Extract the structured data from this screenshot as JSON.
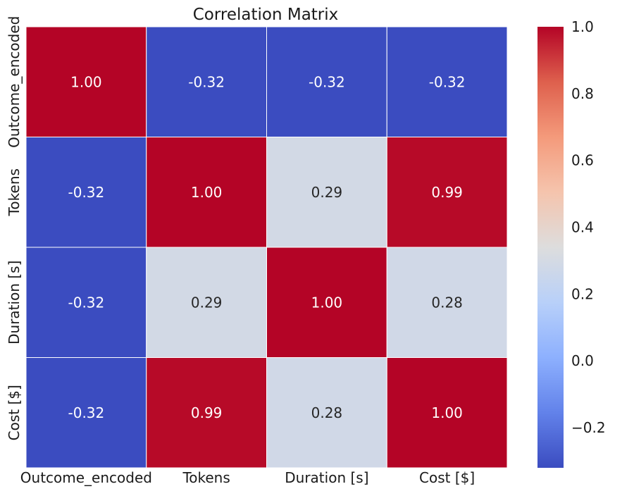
{
  "chart_data": {
    "type": "heatmap",
    "title": "Correlation Matrix",
    "xlabel": "",
    "ylabel": "",
    "x_categories": [
      "Outcome_encoded",
      "Tokens",
      "Duration [s]",
      "Cost [$]"
    ],
    "y_categories": [
      "Outcome_encoded",
      "Tokens",
      "Duration [s]",
      "Cost [$]"
    ],
    "values": [
      [
        1.0,
        -0.32,
        -0.32,
        -0.32
      ],
      [
        -0.32,
        1.0,
        0.29,
        0.99
      ],
      [
        -0.32,
        0.29,
        1.0,
        0.28
      ],
      [
        -0.32,
        0.99,
        0.28,
        1.0
      ]
    ],
    "value_format": "2 decimals",
    "colormap": "coolwarm",
    "colorbar": {
      "range": [
        -0.32,
        1.0
      ],
      "ticks": [
        1.0,
        0.8,
        0.6,
        0.4,
        0.2,
        0.0,
        -0.2
      ],
      "tick_labels": [
        "1.0",
        "0.8",
        "0.6",
        "0.4",
        "0.2",
        "0.0",
        "−0.2"
      ],
      "placement": "right"
    },
    "cell_border_color": "#ffffff",
    "grid": false
  }
}
